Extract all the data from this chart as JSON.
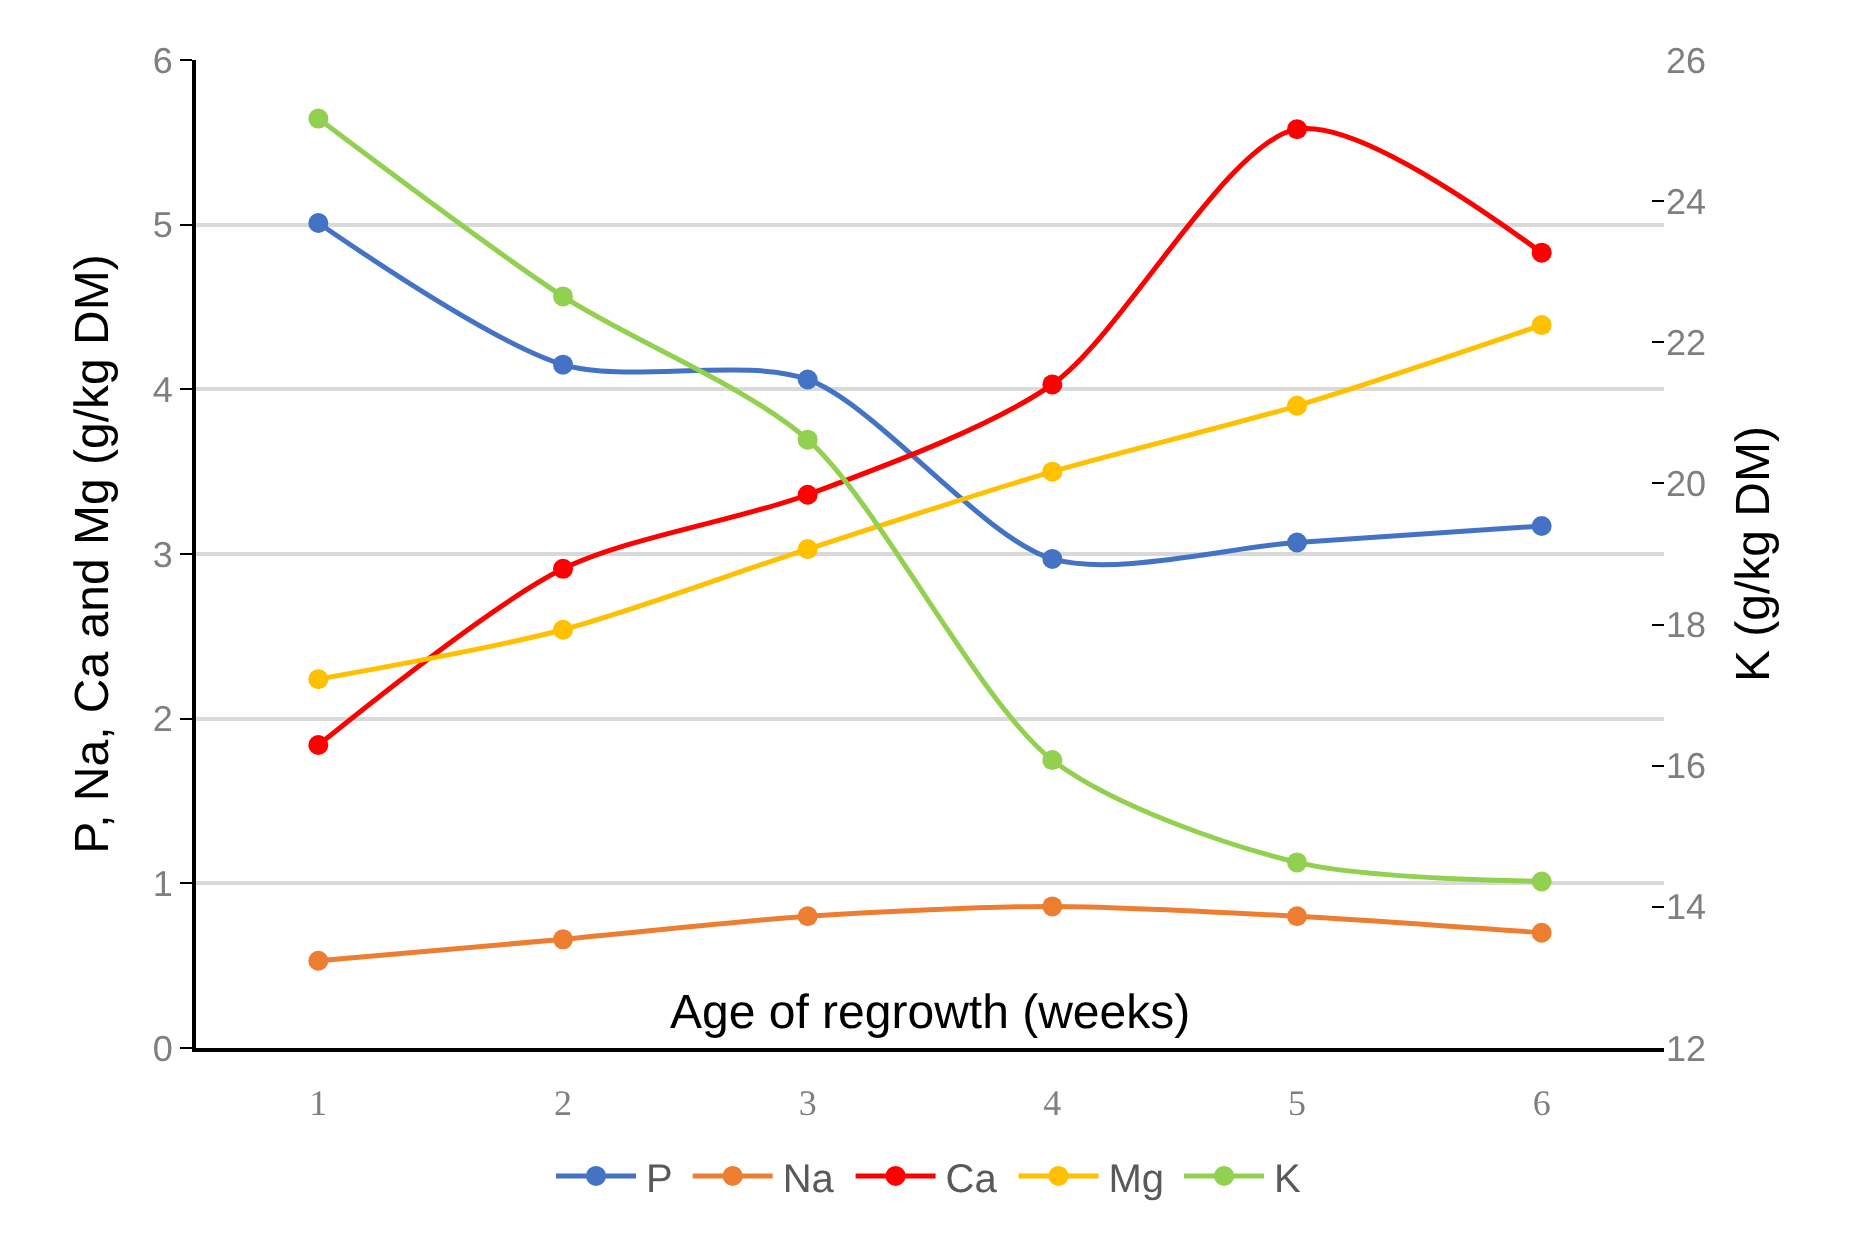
{
  "chart_data": {
    "type": "line",
    "xlabel": "Age of regrowth (weeks)",
    "ylabel": "P, Na, Ca and Mg (g/kg DM)",
    "y2label": "K (g/kg DM)",
    "categories": [
      "1",
      "2",
      "3",
      "4",
      "5",
      "6"
    ],
    "series": [
      {
        "name": "P",
        "color": "#4472c4",
        "values": [
          5.01,
          4.15,
          4.06,
          2.97,
          3.07,
          3.17
        ]
      },
      {
        "name": "Na",
        "color": "#ed7d31",
        "values": [
          0.53,
          0.66,
          0.8,
          0.86,
          0.8,
          0.7
        ]
      },
      {
        "name": "Ca",
        "color": "#ff0000",
        "values": [
          1.84,
          2.91,
          3.36,
          4.03,
          5.58,
          4.83
        ]
      },
      {
        "name": "Mg",
        "color": "#ffc000",
        "values": [
          2.24,
          2.54,
          3.03,
          3.5,
          3.9,
          4.39
        ]
      },
      {
        "name": "K",
        "color": "#92d050",
        "axis": "y2",
        "values": [
          25.17,
          22.65,
          20.62,
          16.08,
          14.63,
          14.36
        ]
      }
    ],
    "ylim": [
      0,
      6
    ],
    "yticks": [
      0,
      1,
      2,
      3,
      4,
      5,
      6
    ],
    "y2lim": [
      12,
      26
    ],
    "y2ticks": [
      12,
      14,
      16,
      18,
      20,
      22,
      24,
      26
    ],
    "grid": "y",
    "legend": "bottom",
    "marker": "circle",
    "line_style": "solid"
  }
}
